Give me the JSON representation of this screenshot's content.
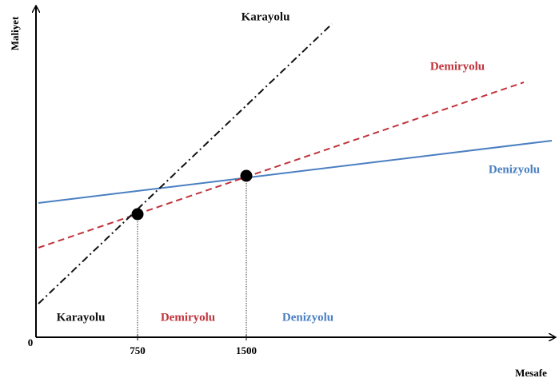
{
  "axes": {
    "y_label": "Maliyet",
    "x_label": "Mesafe",
    "origin": "0",
    "x_ticks": [
      "750",
      "1500"
    ]
  },
  "lines": [
    {
      "label": "Karayolu"
    },
    {
      "label": "Demiryolu"
    },
    {
      "label": "Denizyolu"
    }
  ],
  "regions": [
    {
      "label": "Karayolu"
    },
    {
      "label": "Demiryolu"
    },
    {
      "label": "Denizyolu"
    }
  ]
}
